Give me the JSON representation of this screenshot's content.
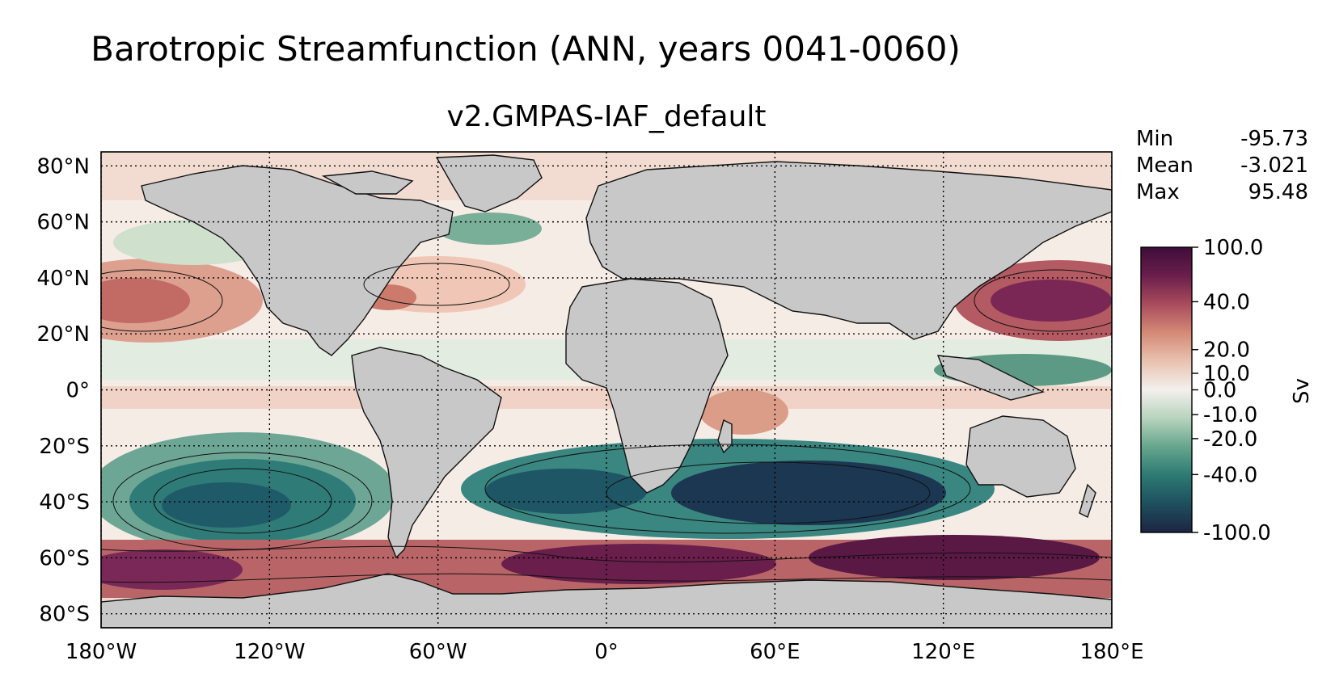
{
  "figure": {
    "suptitle": "Barotropic Streamfunction (ANN, years 0041-0060)",
    "subtitle": "v2.GMPAS-IAF_default"
  },
  "stats": [
    {
      "label": "Min",
      "value": "-95.73"
    },
    {
      "label": "Mean",
      "value": "-3.021"
    },
    {
      "label": "Max",
      "value": "95.48"
    }
  ],
  "map": {
    "lon_ticks": [
      "180°W",
      "120°W",
      "60°W",
      "0°",
      "60°E",
      "120°E",
      "180°E"
    ],
    "lat_ticks": [
      "80°N",
      "60°N",
      "40°N",
      "20°N",
      "0°",
      "20°S",
      "40°S",
      "60°S",
      "80°S"
    ],
    "lon_values": [
      -180,
      -120,
      -60,
      0,
      60,
      120,
      180
    ],
    "lat_values": [
      80,
      60,
      40,
      20,
      0,
      -20,
      -40,
      -60,
      -80
    ],
    "lat_range": [
      -85,
      85
    ],
    "lon_range": [
      -180,
      180
    ],
    "land_color": "#c8c8c8",
    "grid": "dotted"
  },
  "colorbar": {
    "label": "Sv",
    "ticks": [
      "100.0",
      "40.0",
      "20.0",
      "10.0",
      "0.0",
      "-10.0",
      "-20.0",
      "-40.0",
      "-100.0"
    ],
    "tick_positions": [
      1.0,
      0.809,
      0.641,
      0.558,
      0.5,
      0.413,
      0.329,
      0.203,
      0.0
    ],
    "colors": [
      "#1c2543",
      "#1e4f5e",
      "#2c7a73",
      "#66a58d",
      "#b7d3bd",
      "#f3f0ed",
      "#e9c2b0",
      "#d48a76",
      "#a94c5c",
      "#6a1e4c",
      "#3e0d3a"
    ]
  }
}
